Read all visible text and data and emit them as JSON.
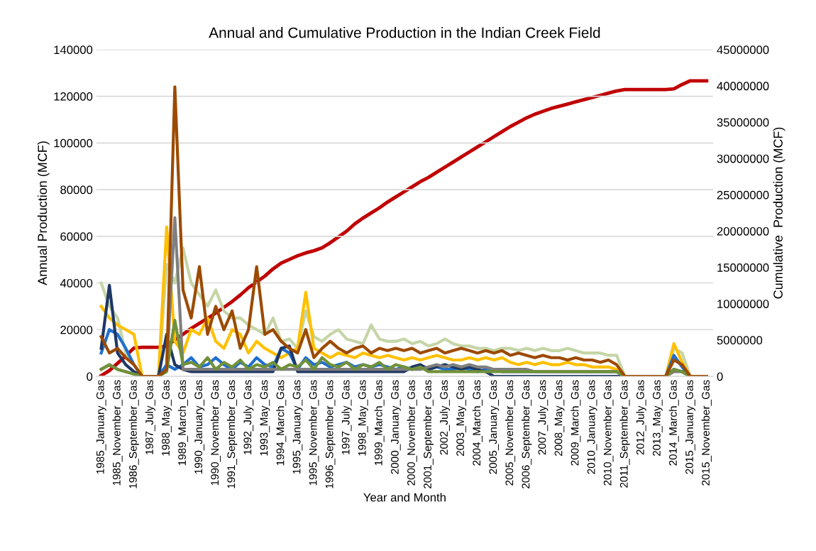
{
  "chart_data": {
    "type": "line",
    "title": "Annual and Cumulative Production in the Indian Creek Field",
    "xlabel": "Year and Month",
    "ylabel": "Annual Production (MCF)",
    "y2label": "Cumulative  Production (MCF)",
    "categories": [
      "1985_January_Gas",
      null,
      "1985_November_Gas",
      null,
      "1986_September_Gas",
      null,
      "1987_July_Gas",
      null,
      "1988_May_Gas",
      null,
      "1989_March_Gas",
      null,
      "1990_January_Gas",
      null,
      "1990_November_Gas",
      null,
      "1991_September_Gas",
      null,
      "1992_July_Gas",
      null,
      "1993_May_Gas",
      null,
      "1994_March_Gas",
      null,
      "1995_January_Gas",
      null,
      "1995_November_Gas",
      null,
      "1996_September_Gas",
      null,
      "1997_July_Gas",
      null,
      "1998_May_Gas",
      null,
      "1999_March_Gas",
      null,
      "2000_January_Gas",
      null,
      "2000_November_Gas",
      null,
      "2001_September_Gas",
      null,
      "2002_July_Gas",
      null,
      "2003_May_Gas",
      null,
      "2004_March_Gas",
      null,
      "2005_January_Gas",
      null,
      "2005_November_Gas",
      null,
      "2006_September_Gas",
      null,
      "2007_July_Gas",
      null,
      "2008_May_Gas",
      null,
      "2009_March_Gas",
      null,
      "2010_January_Gas",
      null,
      "2010_November_Gas",
      null,
      "2011_September_Gas",
      null,
      "2012_July_Gas",
      null,
      "2013_May_Gas",
      null,
      "2014_March_Gas",
      null,
      "2015_January_Gas",
      null,
      "2015_November_Gas"
    ],
    "series": [
      {
        "color": "#c5d5a6",
        "values": [
          40000,
          30000,
          25000,
          10000,
          5000,
          0,
          0,
          0,
          48000,
          40000,
          55000,
          40000,
          35000,
          30000,
          37000,
          28000,
          25000,
          25000,
          22000,
          20000,
          18000,
          25000,
          15000,
          16000,
          12000,
          28000,
          17000,
          15000,
          18000,
          20000,
          16000,
          15000,
          14000,
          22000,
          16000,
          15000,
          15000,
          16000,
          14000,
          15000,
          13000,
          14000,
          16000,
          14000,
          13000,
          13000,
          12000,
          12000,
          11000,
          12000,
          12000,
          11000,
          12000,
          11000,
          12000,
          11000,
          11000,
          12000,
          11000,
          10000,
          10000,
          10000,
          9000,
          9000,
          0,
          0,
          0,
          0,
          0,
          0,
          12000,
          10000,
          0,
          0,
          0
        ]
      },
      {
        "color": "#ffc000",
        "values": [
          30000,
          25000,
          22000,
          20000,
          18000,
          0,
          0,
          0,
          64000,
          15000,
          10000,
          20000,
          18000,
          25000,
          15000,
          12000,
          20000,
          18000,
          10000,
          15000,
          12000,
          10000,
          8000,
          10000,
          12000,
          36000,
          12000,
          10000,
          8000,
          10000,
          9000,
          8000,
          10000,
          9000,
          8000,
          9000,
          8000,
          7000,
          8000,
          7000,
          8000,
          9000,
          8000,
          7000,
          7000,
          8000,
          7000,
          8000,
          7000,
          8000,
          6000,
          5000,
          6000,
          5000,
          6000,
          5000,
          5000,
          6000,
          5000,
          5000,
          4000,
          4000,
          4000,
          3000,
          0,
          0,
          0,
          0,
          0,
          0,
          14000,
          6000,
          0,
          0,
          0
        ]
      },
      {
        "color": "#1f6fd0",
        "values": [
          10000,
          20000,
          18000,
          12000,
          5000,
          0,
          0,
          0,
          5000,
          3000,
          5000,
          8000,
          4000,
          5000,
          8000,
          5000,
          3000,
          6000,
          4000,
          8000,
          5000,
          4000,
          12000,
          10000,
          3000,
          8000,
          5000,
          6000,
          4000,
          5000,
          6000,
          4000,
          5000,
          4000,
          5000,
          4000,
          3000,
          4000,
          3000,
          4000,
          3000,
          4000,
          3000,
          3000,
          4000,
          3000,
          2000,
          3000,
          3000,
          2000,
          2000,
          2000,
          2000,
          2000,
          2000,
          2000,
          2000,
          2000,
          2000,
          2000,
          2000,
          2000,
          2000,
          2000,
          0,
          0,
          0,
          0,
          0,
          0,
          9000,
          4000,
          0,
          0,
          0
        ]
      },
      {
        "color": "#1f3864",
        "values": [
          12000,
          39000,
          10000,
          5000,
          2000,
          0,
          0,
          0,
          18000,
          5000,
          3000,
          2000,
          2000,
          2000,
          2000,
          2000,
          2000,
          2000,
          2000,
          2000,
          2000,
          2000,
          12000,
          13000,
          2000,
          2000,
          2000,
          2000,
          2000,
          2000,
          2000,
          2000,
          2000,
          2000,
          2000,
          2000,
          2000,
          2000,
          4000,
          5000,
          3000,
          4000,
          5000,
          4000,
          3000,
          4000,
          3000,
          2000,
          0,
          0,
          0,
          0,
          0,
          0,
          0,
          0,
          0,
          0,
          0,
          0,
          0,
          0,
          0,
          0,
          0,
          0,
          0,
          0,
          0,
          0,
          3000,
          2000,
          0,
          0,
          0
        ]
      },
      {
        "color": "#7f7f7f",
        "values": [
          3000,
          5000,
          3000,
          2000,
          1000,
          0,
          0,
          0,
          3000,
          68000,
          3000,
          3000,
          3000,
          3000,
          3000,
          3000,
          3000,
          3000,
          3000,
          3000,
          3000,
          3000,
          3000,
          3000,
          3000,
          3000,
          3000,
          3000,
          3000,
          3000,
          3000,
          3000,
          3000,
          3000,
          3000,
          3000,
          3000,
          3000,
          3000,
          3000,
          4000,
          5000,
          4000,
          5000,
          4000,
          5000,
          4000,
          4000,
          3000,
          3000,
          3000,
          3000,
          3000,
          2000,
          2000,
          2000,
          2000,
          2000,
          2000,
          2000,
          2000,
          2000,
          2000,
          2000,
          0,
          0,
          0,
          0,
          0,
          0,
          2000,
          2000,
          0,
          0,
          0
        ]
      },
      {
        "color": "#70913a",
        "values": [
          3000,
          5000,
          3000,
          2000,
          1000,
          0,
          0,
          0,
          2000,
          24000,
          5000,
          6000,
          4000,
          8000,
          3000,
          6000,
          4000,
          7000,
          3000,
          5000,
          4000,
          6000,
          3000,
          5000,
          4000,
          7000,
          3000,
          8000,
          5000,
          4000,
          6000,
          3000,
          5000,
          4000,
          6000,
          3000,
          5000,
          4000,
          3000,
          4000,
          2000,
          2000,
          2000,
          2000,
          2000,
          2000,
          2000,
          2000,
          2000,
          2000,
          2000,
          2000,
          2000,
          2000,
          2000,
          2000,
          2000,
          2000,
          2000,
          2000,
          2000,
          2000,
          2000,
          2000,
          0,
          0,
          0,
          0,
          0,
          0,
          3000,
          2000,
          0,
          0,
          0
        ]
      },
      {
        "color": "#9c4a00",
        "values": [
          17000,
          10000,
          12000,
          8000,
          5000,
          0,
          0,
          0,
          3000,
          124000,
          37000,
          25000,
          47000,
          18000,
          30000,
          20000,
          28000,
          12000,
          20000,
          47000,
          18000,
          20000,
          15000,
          12000,
          10000,
          20000,
          8000,
          12000,
          15000,
          12000,
          10000,
          12000,
          13000,
          10000,
          12000,
          11000,
          12000,
          11000,
          12000,
          10000,
          11000,
          12000,
          10000,
          11000,
          12000,
          11000,
          10000,
          11000,
          10000,
          11000,
          9000,
          10000,
          9000,
          8000,
          9000,
          8000,
          8000,
          7000,
          8000,
          7000,
          7000,
          6000,
          7000,
          5000,
          0,
          0,
          0,
          0,
          0,
          0,
          7000,
          5000,
          0,
          0,
          0
        ]
      },
      {
        "color": "#c00000",
        "axis": "y2",
        "values": [
          100000,
          800000,
          1800000,
          2800000,
          3900000,
          4000000,
          4000000,
          4000000,
          4200000,
          5000000,
          5800000,
          6600000,
          7300000,
          8000000,
          8700000,
          9500000,
          10300000,
          11200000,
          12200000,
          13000000,
          13800000,
          14800000,
          15600000,
          16100000,
          16600000,
          17000000,
          17300000,
          17700000,
          18400000,
          19200000,
          20000000,
          21000000,
          21800000,
          22500000,
          23200000,
          24000000,
          24700000,
          25400000,
          26100000,
          26800000,
          27400000,
          28100000,
          28800000,
          29500000,
          30200000,
          30900000,
          31600000,
          32300000,
          33000000,
          33700000,
          34400000,
          35000000,
          35600000,
          36100000,
          36500000,
          36900000,
          37200000,
          37500000,
          37800000,
          38100000,
          38400000,
          38700000,
          39000000,
          39300000,
          39500000,
          39500000,
          39500000,
          39500000,
          39500000,
          39500000,
          39600000,
          40200000,
          40700000,
          40700000,
          40700000
        ]
      }
    ],
    "ylim": [
      0,
      140000
    ],
    "yticks": [
      0,
      20000,
      40000,
      60000,
      80000,
      100000,
      120000,
      140000
    ],
    "y2lim": [
      0,
      45000000
    ],
    "y2ticks": [
      0,
      5000000,
      10000000,
      15000000,
      20000000,
      25000000,
      30000000,
      35000000,
      40000000,
      45000000
    ],
    "grid": "y",
    "marker": "none",
    "line_style": "solid"
  }
}
